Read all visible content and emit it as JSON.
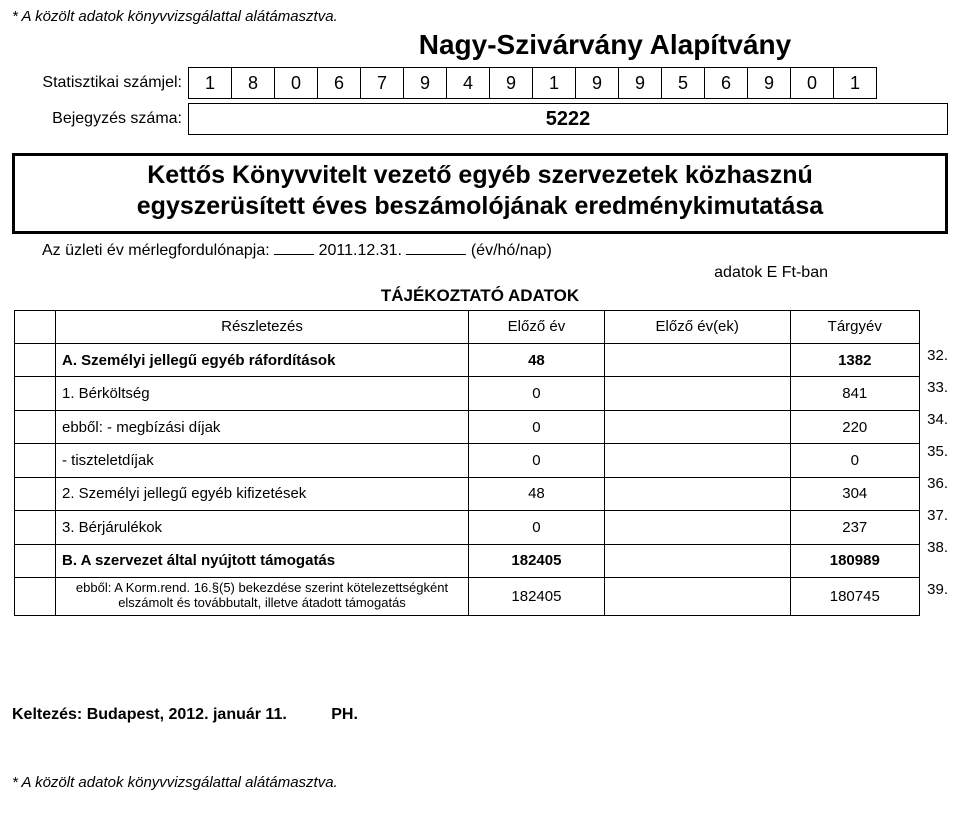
{
  "top_note": "* A közölt adatok könyvvizsgálattal alátámasztva.",
  "org_title": "Nagy-Szivárvány Alapítvány",
  "labels": {
    "stat": "Statisztikai számjel:",
    "reg": "Bejegyzés száma:"
  },
  "stat_digits": [
    "1",
    "8",
    "0",
    "6",
    "7",
    "9",
    "4",
    "9",
    "1",
    "9",
    "9",
    "5",
    "6",
    "9",
    "0",
    "1"
  ],
  "reg_number": "5222",
  "box_title_line1": "Kettős Könyvvitelt vezető egyéb szervezetek közhasznú",
  "box_title_line2": "egyszerüsített éves beszámolójának eredménykimutatása",
  "date_label": "Az üzleti év mérlegfordulónapja:",
  "date_value": "2011.12.31.",
  "date_suffix": "(év/hó/nap)",
  "unit_text": "adatok E Ft-ban",
  "section_title": "TÁJÉKOZTATÓ ADATOK",
  "columns": [
    "Részletezés",
    "Előző év",
    "Előző év(ek)",
    "Tárgyév"
  ],
  "rows": [
    {
      "desc": "A. Személyi jellegű egyéb ráfordítások",
      "c1": "48",
      "c2": "",
      "c3": "1382",
      "n": "32.",
      "bold": true,
      "indent": 0
    },
    {
      "desc": "1. Bérköltség",
      "c1": "0",
      "c2": "",
      "c3": "841",
      "n": "33.",
      "bold": false,
      "indent": 1
    },
    {
      "desc": "ebből: - megbízási díjak",
      "c1": "0",
      "c2": "",
      "c3": "220",
      "n": "34.",
      "bold": false,
      "indent": 1
    },
    {
      "desc": "- tiszteletdíjak",
      "c1": "0",
      "c2": "",
      "c3": "0",
      "n": "35.",
      "bold": false,
      "indent": 2
    },
    {
      "desc": "2. Személyi jellegű egyéb kifizetések",
      "c1": "48",
      "c2": "",
      "c3": "304",
      "n": "36.",
      "bold": false,
      "indent": 1
    },
    {
      "desc": "3. Bérjárulékok",
      "c1": "0",
      "c2": "",
      "c3": "237",
      "n": "37.",
      "bold": false,
      "indent": 1
    },
    {
      "desc": "B. A szervezet által nyújtott támogatás",
      "c1": "182405",
      "c2": "",
      "c3": "180989",
      "n": "38.",
      "bold": true,
      "indent": 0
    },
    {
      "desc": "ebből: A Korm.rend. 16.§(5) bekezdése szerint kötelezettségként elszámolt és továbbutalt, illetve átadott támogatás",
      "c1": "182405",
      "c2": "",
      "c3": "180745",
      "n": "39.",
      "bold": false,
      "indent": 0,
      "center": true,
      "small": true
    }
  ],
  "signing_city": "Keltezés: Budapest, 2012. január 11.",
  "signing_ph": "PH.",
  "footer_note": "* A közölt adatok könyvvizsgálattal alátámasztva.",
  "colors": {
    "border": "#000000",
    "bg": "#ffffff",
    "text": "#000000"
  },
  "col_widths": {
    "idx": 28,
    "desc": 400,
    "num": 150
  },
  "font": {
    "family": "Arial",
    "title_pt": 28,
    "body_pt": 15,
    "box_title_pt": 25
  }
}
